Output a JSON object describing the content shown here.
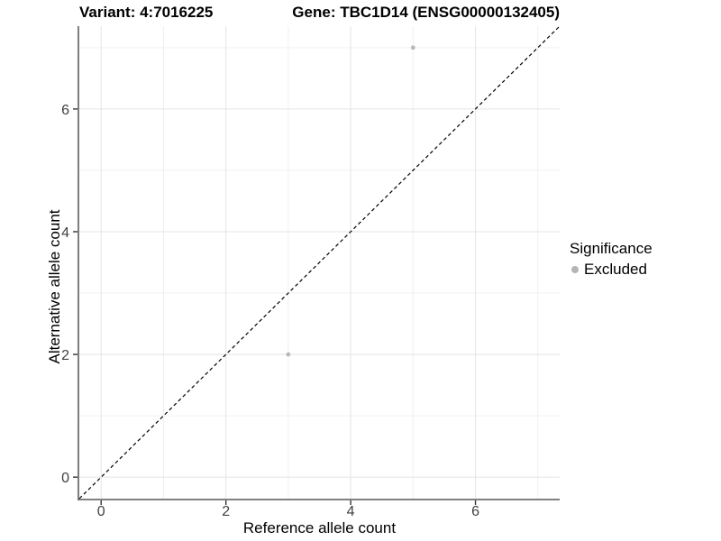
{
  "chart_data": {
    "type": "scatter",
    "titles": {
      "left": "Variant: 4:7016225",
      "right": "Gene: TBC1D14 (ENSG00000132405)"
    },
    "xlabel": "Reference allele count",
    "ylabel": "Alternative allele count",
    "xlim": [
      -0.35,
      7.35
    ],
    "ylim": [
      -0.35,
      7.35
    ],
    "x_ticks": [
      0,
      2,
      4,
      6
    ],
    "y_ticks": [
      0,
      2,
      4,
      6
    ],
    "x_minor_ticks": [
      1,
      3,
      5,
      7
    ],
    "y_minor_ticks": [
      1,
      3,
      5,
      7
    ],
    "grid": true,
    "series": [
      {
        "name": "Excluded",
        "color": "#b9b9b9",
        "points": [
          {
            "x": 3,
            "y": 2
          },
          {
            "x": 5,
            "y": 7
          }
        ]
      }
    ],
    "reference_line": {
      "type": "identity",
      "slope": 1,
      "intercept": 0,
      "style": "dashed",
      "color": "#000000"
    },
    "legend": {
      "title": "Significance",
      "position": "right",
      "items": [
        {
          "label": "Excluded",
          "swatch_color": "#b5b5b5"
        }
      ]
    },
    "colors": {
      "background": "#ffffff",
      "grid_major": "#e4e4e4",
      "grid_minor": "#f0f0f0",
      "axis_line": "#6f6f6f",
      "tick_mark": "#333333",
      "tick_label": "#404040",
      "point": "#b9b9b9",
      "dashed_line": "#000000"
    }
  }
}
